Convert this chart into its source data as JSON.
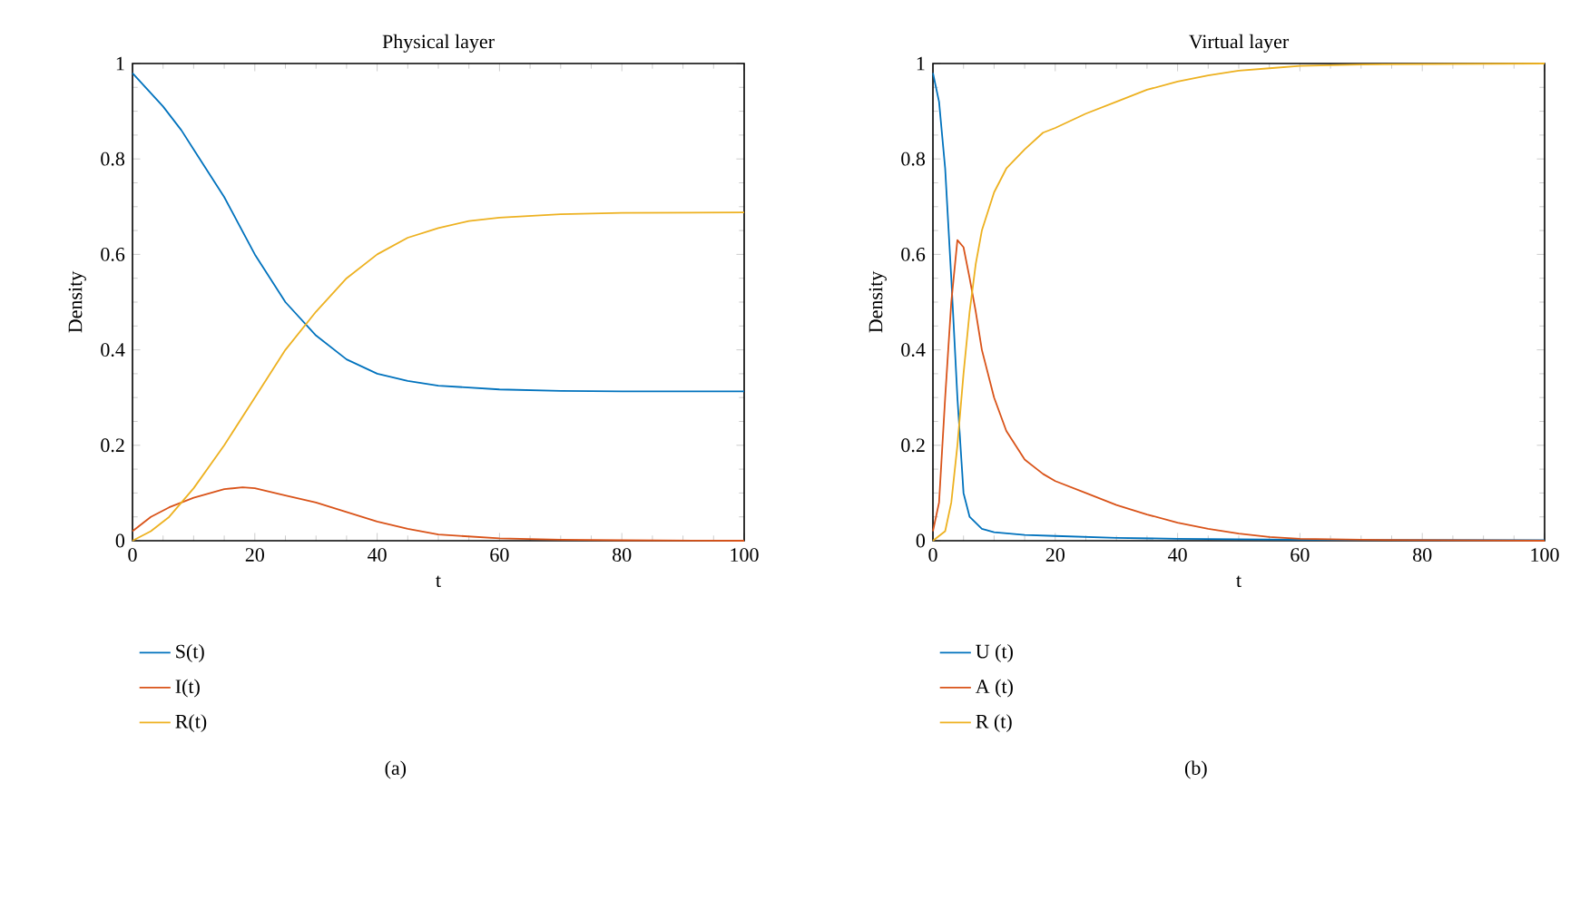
{
  "chart_data": [
    {
      "type": "line",
      "title": "Physical layer",
      "xlabel": "t",
      "ylabel": "Density",
      "xlim": [
        0,
        100
      ],
      "ylim": [
        0,
        1
      ],
      "xticks": [
        0,
        20,
        40,
        60,
        80,
        100
      ],
      "yticks": [
        0,
        0.2,
        0.4,
        0.6,
        0.8,
        1
      ],
      "legend": "bottom",
      "annotations": [
        "(a)"
      ],
      "series": [
        {
          "name": "S(t)",
          "color": "#0072bd",
          "x": [
            0,
            5,
            8,
            10,
            15,
            20,
            25,
            30,
            35,
            40,
            45,
            50,
            60,
            70,
            80,
            100
          ],
          "values": [
            0.98,
            0.91,
            0.86,
            0.82,
            0.72,
            0.6,
            0.5,
            0.43,
            0.38,
            0.35,
            0.335,
            0.325,
            0.317,
            0.314,
            0.313,
            0.313
          ]
        },
        {
          "name": "I(t)",
          "color": "#d95319",
          "x": [
            0,
            3,
            6,
            10,
            15,
            18,
            20,
            25,
            30,
            35,
            40,
            45,
            50,
            60,
            70,
            80,
            100
          ],
          "values": [
            0.02,
            0.05,
            0.07,
            0.09,
            0.108,
            0.112,
            0.11,
            0.095,
            0.08,
            0.06,
            0.04,
            0.025,
            0.013,
            0.005,
            0.002,
            0.001,
            0
          ]
        },
        {
          "name": "R(t)",
          "color": "#edb120",
          "x": [
            0,
            3,
            6,
            10,
            15,
            20,
            25,
            30,
            35,
            40,
            45,
            50,
            55,
            60,
            70,
            80,
            100
          ],
          "values": [
            0,
            0.02,
            0.05,
            0.11,
            0.2,
            0.3,
            0.4,
            0.48,
            0.55,
            0.6,
            0.635,
            0.655,
            0.67,
            0.677,
            0.684,
            0.687,
            0.688
          ]
        }
      ]
    },
    {
      "type": "line",
      "title": "Virtual layer",
      "xlabel": "t",
      "ylabel": "Density",
      "xlim": [
        0,
        100
      ],
      "ylim": [
        0,
        1
      ],
      "xticks": [
        0,
        20,
        40,
        60,
        80,
        100
      ],
      "yticks": [
        0,
        0.2,
        0.4,
        0.6,
        0.8,
        1
      ],
      "legend": "bottom",
      "annotations": [
        "(b)"
      ],
      "series": [
        {
          "name": "U (t)",
          "color": "#0072bd",
          "x": [
            0,
            1,
            2,
            3,
            4,
            5,
            6,
            8,
            10,
            15,
            20,
            30,
            40,
            60,
            100
          ],
          "values": [
            0.98,
            0.92,
            0.78,
            0.55,
            0.3,
            0.1,
            0.05,
            0.025,
            0.018,
            0.012,
            0.01,
            0.006,
            0.004,
            0.002,
            0.001
          ]
        },
        {
          "name": "A (t)",
          "color": "#d95319",
          "x": [
            0,
            1,
            2,
            3,
            4,
            5,
            6,
            7,
            8,
            10,
            12,
            15,
            18,
            20,
            25,
            30,
            35,
            40,
            45,
            50,
            55,
            60,
            70,
            100
          ],
          "values": [
            0.02,
            0.08,
            0.3,
            0.5,
            0.63,
            0.615,
            0.55,
            0.48,
            0.4,
            0.3,
            0.23,
            0.17,
            0.14,
            0.125,
            0.1,
            0.075,
            0.055,
            0.038,
            0.025,
            0.015,
            0.008,
            0.004,
            0.002,
            0
          ]
        },
        {
          "name": "R (t)",
          "color": "#edb120",
          "x": [
            0,
            2,
            3,
            4,
            5,
            6,
            7,
            8,
            10,
            12,
            15,
            18,
            20,
            25,
            30,
            35,
            40,
            45,
            50,
            55,
            60,
            70,
            100
          ],
          "values": [
            0,
            0.02,
            0.08,
            0.2,
            0.35,
            0.48,
            0.58,
            0.65,
            0.73,
            0.78,
            0.82,
            0.855,
            0.865,
            0.895,
            0.92,
            0.945,
            0.962,
            0.975,
            0.985,
            0.99,
            0.995,
            0.998,
            1.0
          ]
        }
      ]
    }
  ]
}
